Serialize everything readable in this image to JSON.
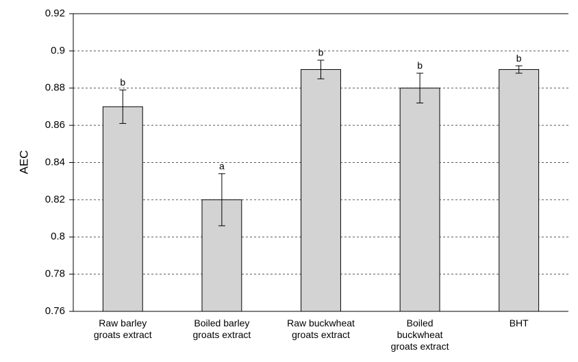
{
  "chart_data": {
    "type": "bar",
    "y_label": "AEC",
    "categories": [
      "Raw barley\ngroats extract",
      "Boiled barley\ngroats extract",
      "Raw buckwheat\ngroats extract",
      "Boiled\nbuckwheat\ngroats extract",
      "BHT"
    ],
    "values": [
      0.87,
      0.82,
      0.89,
      0.88,
      0.89
    ],
    "errors": [
      0.009,
      0.014,
      0.005,
      0.008,
      0.002
    ],
    "annotations": [
      "b",
      "a",
      "b",
      "b",
      "b"
    ],
    "color": "#d3d3d3",
    "ylim": [
      0.76,
      0.92
    ],
    "yticks": [
      0.76,
      0.78,
      0.8,
      0.82,
      0.84,
      0.86,
      0.88,
      0.9,
      0.92
    ],
    "grid": true
  }
}
